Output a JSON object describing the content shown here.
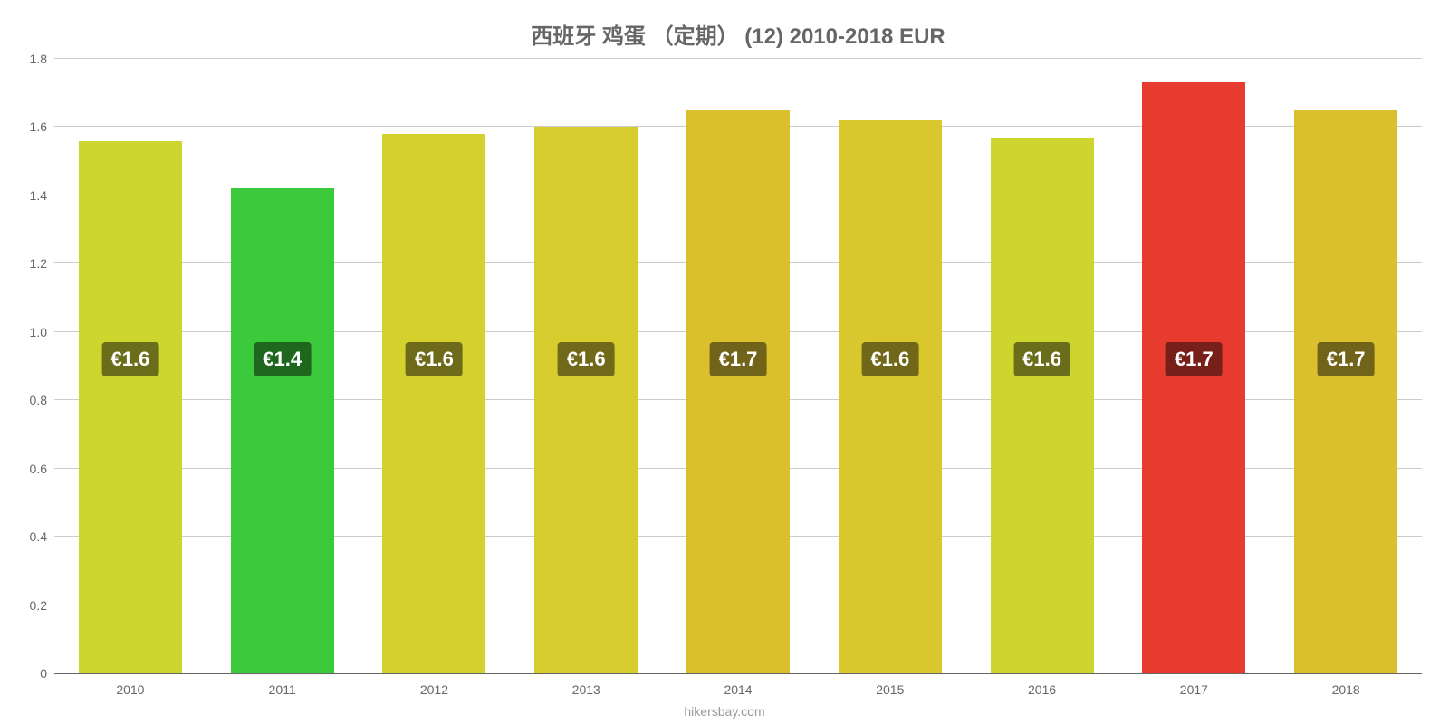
{
  "chart": {
    "type": "bar",
    "title": "西班牙 鸡蛋 （定期） (12) 2010-2018 EUR",
    "title_fontsize": 24,
    "title_color": "#666666",
    "background_color": "#ffffff",
    "attribution": "hikersbay.com",
    "attribution_color": "#999999",
    "attribution_fontsize": 14,
    "y": {
      "min": 0,
      "max": 1.8,
      "ticks": [
        0,
        0.2,
        0.4,
        0.6,
        0.8,
        1.0,
        1.2,
        1.4,
        1.6,
        1.8
      ],
      "tick_labels": [
        "0",
        "0.2",
        "0.4",
        "0.6",
        "0.8",
        "1.0",
        "1.2",
        "1.4",
        "1.6",
        "1.8"
      ],
      "tick_fontsize": 14,
      "tick_color": "#666666",
      "grid_color": "#cccccc",
      "baseline_color": "#666666"
    },
    "x": {
      "categories": [
        "2010",
        "2011",
        "2012",
        "2013",
        "2014",
        "2015",
        "2016",
        "2017",
        "2018"
      ],
      "tick_fontsize": 14,
      "tick_color": "#666666"
    },
    "bars": {
      "width_fraction": 0.68,
      "border_radius_top": 0,
      "values": [
        1.56,
        1.42,
        1.58,
        1.6,
        1.65,
        1.62,
        1.57,
        1.73,
        1.65
      ],
      "fill_colors": [
        "#cdd62f",
        "#3cc93c",
        "#d4d02e",
        "#d7cc2e",
        "#dbc02d",
        "#d8c72d",
        "#ced52f",
        "#e73b2f",
        "#dbc02d"
      ],
      "data_labels": [
        "€1.6",
        "€1.4",
        "€1.6",
        "€1.6",
        "€1.7",
        "€1.6",
        "€1.6",
        "€1.7",
        "€1.7"
      ],
      "data_label_bg": [
        "#6a6e1a",
        "#1f671f",
        "#6d6b1a",
        "#6f6919",
        "#716319",
        "#706719",
        "#6a6e1a",
        "#771f19",
        "#716319"
      ],
      "data_label_color": "#ffffff",
      "data_label_fontsize": 22,
      "data_label_y_center": 0.92
    }
  }
}
